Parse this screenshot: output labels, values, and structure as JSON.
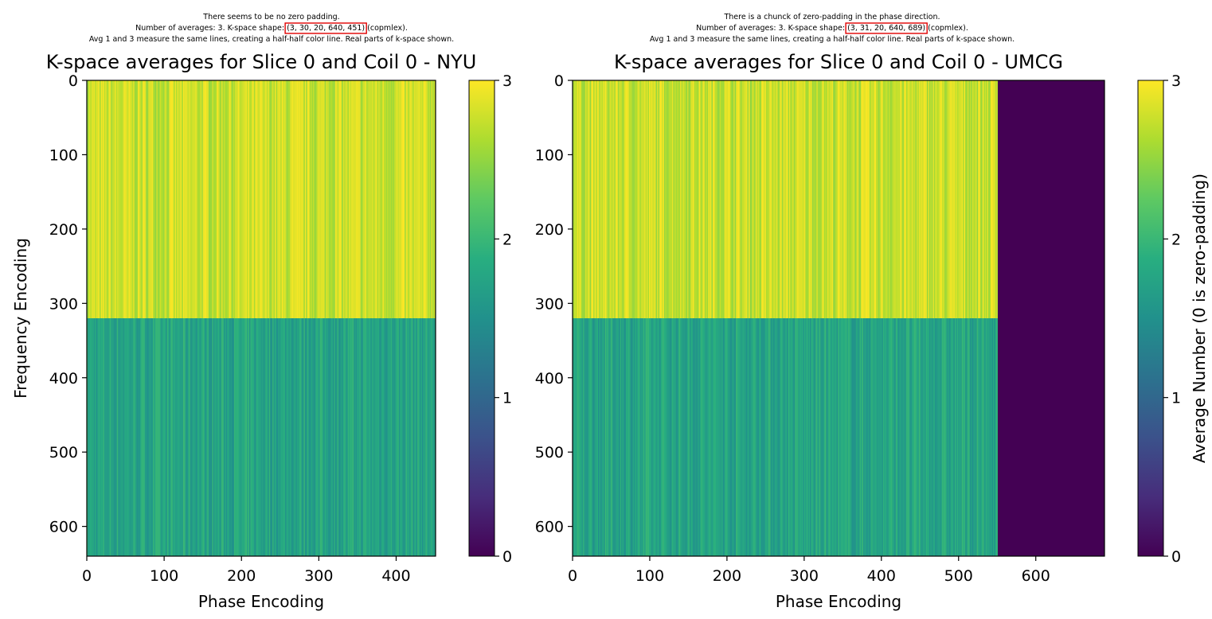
{
  "colormap": "viridis",
  "highlight_color": "#e00000",
  "chart_data": [
    {
      "type": "heatmap",
      "notes": [
        {
          "text": "There seems to be no zero padding."
        },
        {
          "text": "Number of averages: 3. K-space shape: ",
          "highlight": "(3, 30, 20, 640, 451)",
          "text_after": " (copmlex)."
        },
        {
          "text": "Avg 1 and 3 measure the same lines, creating a half-half color line. Real parts of k-space shown."
        }
      ],
      "title": "K-space averages for Slice 0 and Coil 0 - NYU",
      "xlabel": "Phase Encoding",
      "ylabel": "Frequency Encoding",
      "xlim": [
        0,
        451
      ],
      "ylim": [
        640,
        0
      ],
      "xticks": [
        0,
        100,
        200,
        300,
        400
      ],
      "yticks": [
        0,
        100,
        200,
        300,
        400,
        500,
        600
      ],
      "data_width": 451,
      "split_row": 320,
      "regions": [
        {
          "rows": [
            0,
            320
          ],
          "value_range": [
            2.5,
            3
          ]
        },
        {
          "rows": [
            320,
            640
          ],
          "value_range": [
            1.5,
            2
          ]
        }
      ],
      "zero_padding_from": null,
      "colorbar": {
        "range": [
          0,
          3
        ],
        "ticks": [
          0,
          1,
          2,
          3
        ],
        "label": ""
      }
    },
    {
      "type": "heatmap",
      "notes": [
        {
          "text": "There is a chunck of zero-padding in the phase direction."
        },
        {
          "text": "Number of averages: 3. K-space shape: ",
          "highlight": "(3, 31, 20, 640, 689)",
          "text_after": " (copmlex)."
        },
        {
          "text": "Avg 1 and 3 measure the same lines, creating a half-half color line. Real parts of k-space shown."
        }
      ],
      "title": "K-space averages for Slice 0 and Coil 0 - UMCG",
      "xlabel": "Phase Encoding",
      "ylabel": "",
      "xlim": [
        0,
        689
      ],
      "ylim": [
        640,
        0
      ],
      "xticks": [
        0,
        100,
        200,
        300,
        400,
        500,
        600
      ],
      "yticks": [
        0,
        100,
        200,
        300,
        400,
        500,
        600
      ],
      "data_width": 689,
      "split_row": 320,
      "regions": [
        {
          "rows": [
            0,
            320
          ],
          "value_range": [
            2.5,
            3
          ]
        },
        {
          "rows": [
            320,
            640
          ],
          "value_range": [
            1.5,
            2
          ]
        }
      ],
      "zero_padding_from": 551,
      "colorbar": {
        "range": [
          0,
          3
        ],
        "ticks": [
          0,
          1,
          2,
          3
        ],
        "label": "Average Number (0 is zero-padding)"
      }
    }
  ]
}
